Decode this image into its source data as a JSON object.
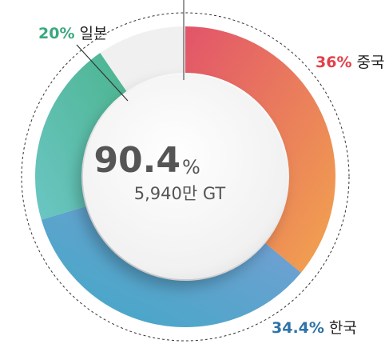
{
  "chart_data": {
    "type": "pie",
    "categories": [
      "중국",
      "한국",
      "일본"
    ],
    "values": [
      36,
      34.4,
      20
    ],
    "value_labels": [
      "36%",
      "34.4%",
      "20%"
    ],
    "colors": [
      "#e2404a",
      "#2f73a8",
      "#3aa87e"
    ],
    "center_label": {
      "value": "90.4",
      "unit": "%"
    },
    "center_sublabel": "5,940만 GT"
  }
}
